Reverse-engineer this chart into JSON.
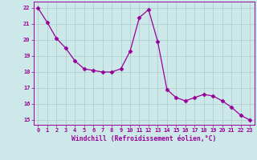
{
  "x": [
    0,
    1,
    2,
    3,
    4,
    5,
    6,
    7,
    8,
    9,
    10,
    11,
    12,
    13,
    14,
    15,
    16,
    17,
    18,
    19,
    20,
    21,
    22,
    23
  ],
  "y": [
    22.0,
    21.1,
    20.1,
    19.5,
    18.7,
    18.2,
    18.1,
    18.0,
    18.0,
    18.2,
    19.3,
    21.4,
    21.9,
    19.9,
    16.9,
    16.4,
    16.2,
    16.4,
    16.6,
    16.5,
    16.2,
    15.8,
    15.3,
    15.0
  ],
  "line_color": "#990099",
  "marker": "D",
  "marker_size": 2.5,
  "bg_color": "#cce8e8",
  "grid_color": "#aacccc",
  "xlabel": "Windchill (Refroidissement éolien,°C)",
  "xlabel_color": "#990099",
  "ylabel_ticks": [
    15,
    16,
    17,
    18,
    19,
    20,
    21,
    22
  ],
  "xtick_labels": [
    "0",
    "1",
    "2",
    "3",
    "4",
    "5",
    "6",
    "7",
    "8",
    "9",
    "10",
    "11",
    "12",
    "13",
    "14",
    "15",
    "16",
    "17",
    "18",
    "19",
    "20",
    "21",
    "22",
    "23"
  ],
  "ylim": [
    14.7,
    22.4
  ],
  "xlim": [
    -0.5,
    23.5
  ]
}
